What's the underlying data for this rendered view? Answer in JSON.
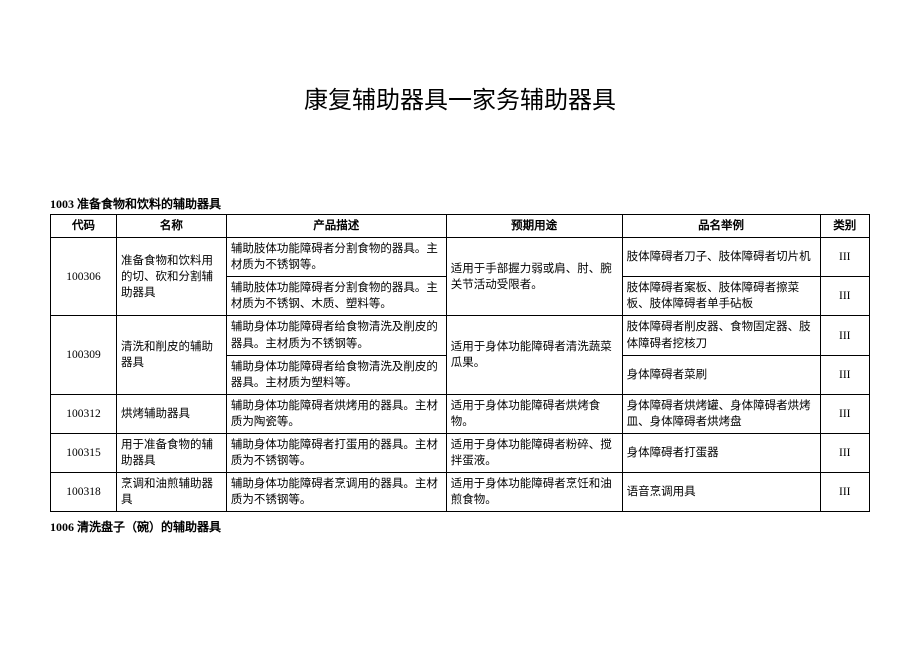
{
  "title": "康复辅助器具一家务辅助器具",
  "section1": "1003 准备食物和饮料的辅助器具",
  "section2": "1006 清洗盘子（碗）的辅助器具",
  "headers": {
    "code": "代码",
    "name": "名称",
    "desc": "产品描述",
    "use": "预期用途",
    "brand": "品名举例",
    "cat": "类别"
  },
  "r1": {
    "code": "100306",
    "name": "准备食物和饮料用的切、砍和分割辅助器具",
    "desc": "辅助肢体功能障碍者分割食物的器具。主材质为不锈钢等。",
    "use": "适用于手部握力弱或肩、肘、腕关节活动受限者。",
    "brand": "肢体障碍者刀子、肢体障碍者切片机",
    "cat": "III"
  },
  "r2": {
    "desc": "辅助肢体功能障碍者分割食物的器具。主材质为不锈钢、木质、塑料等。",
    "brand": "肢体障碍者案板、肢体障碍者擦菜板、肢体障碍者单手砧板",
    "cat": "III"
  },
  "r3": {
    "code": "100309",
    "name": "清洗和削皮的辅助器具",
    "desc": "辅助身体功能障碍者给食物清洗及削皮的器具。主材质为不锈钢等。",
    "use": "适用于身体功能障碍者清洗蔬菜瓜果。",
    "brand": "肢体障碍者削皮器、食物固定器、肢体障碍者挖核刀",
    "cat": "III"
  },
  "r4": {
    "desc": "辅助身体功能障碍者给食物清洗及削皮的器具。主材质为塑料等。",
    "brand": "身体障碍者菜刷",
    "cat": "III"
  },
  "r5": {
    "code": "100312",
    "name": "烘烤辅助器具",
    "desc": "辅助身体功能障碍者烘烤用的器具。主材质为陶瓷等。",
    "use": "适用于身体功能障碍者烘烤食物。",
    "brand": "身体障碍者烘烤罐、身体障碍者烘烤皿、身体障碍者烘烤盘",
    "cat": "III"
  },
  "r6": {
    "code": "100315",
    "name": "用于准备食物的辅助器具",
    "desc": "辅助身体功能障碍者打蛋用的器具。主材质为不锈钢等。",
    "use": "适用于身体功能障碍者粉碎、搅拌蛋液。",
    "brand": "身体障碍者打蛋器",
    "cat": "III"
  },
  "r7": {
    "code": "100318",
    "name": "烹调和油煎辅助器具",
    "desc": "辅助身体功能障碍者烹调用的器具。主材质为不锈钢等。",
    "use": "适用于身体功能障碍者烹饪和油煎食物。",
    "brand": "语音烹调用具",
    "cat": "III"
  }
}
